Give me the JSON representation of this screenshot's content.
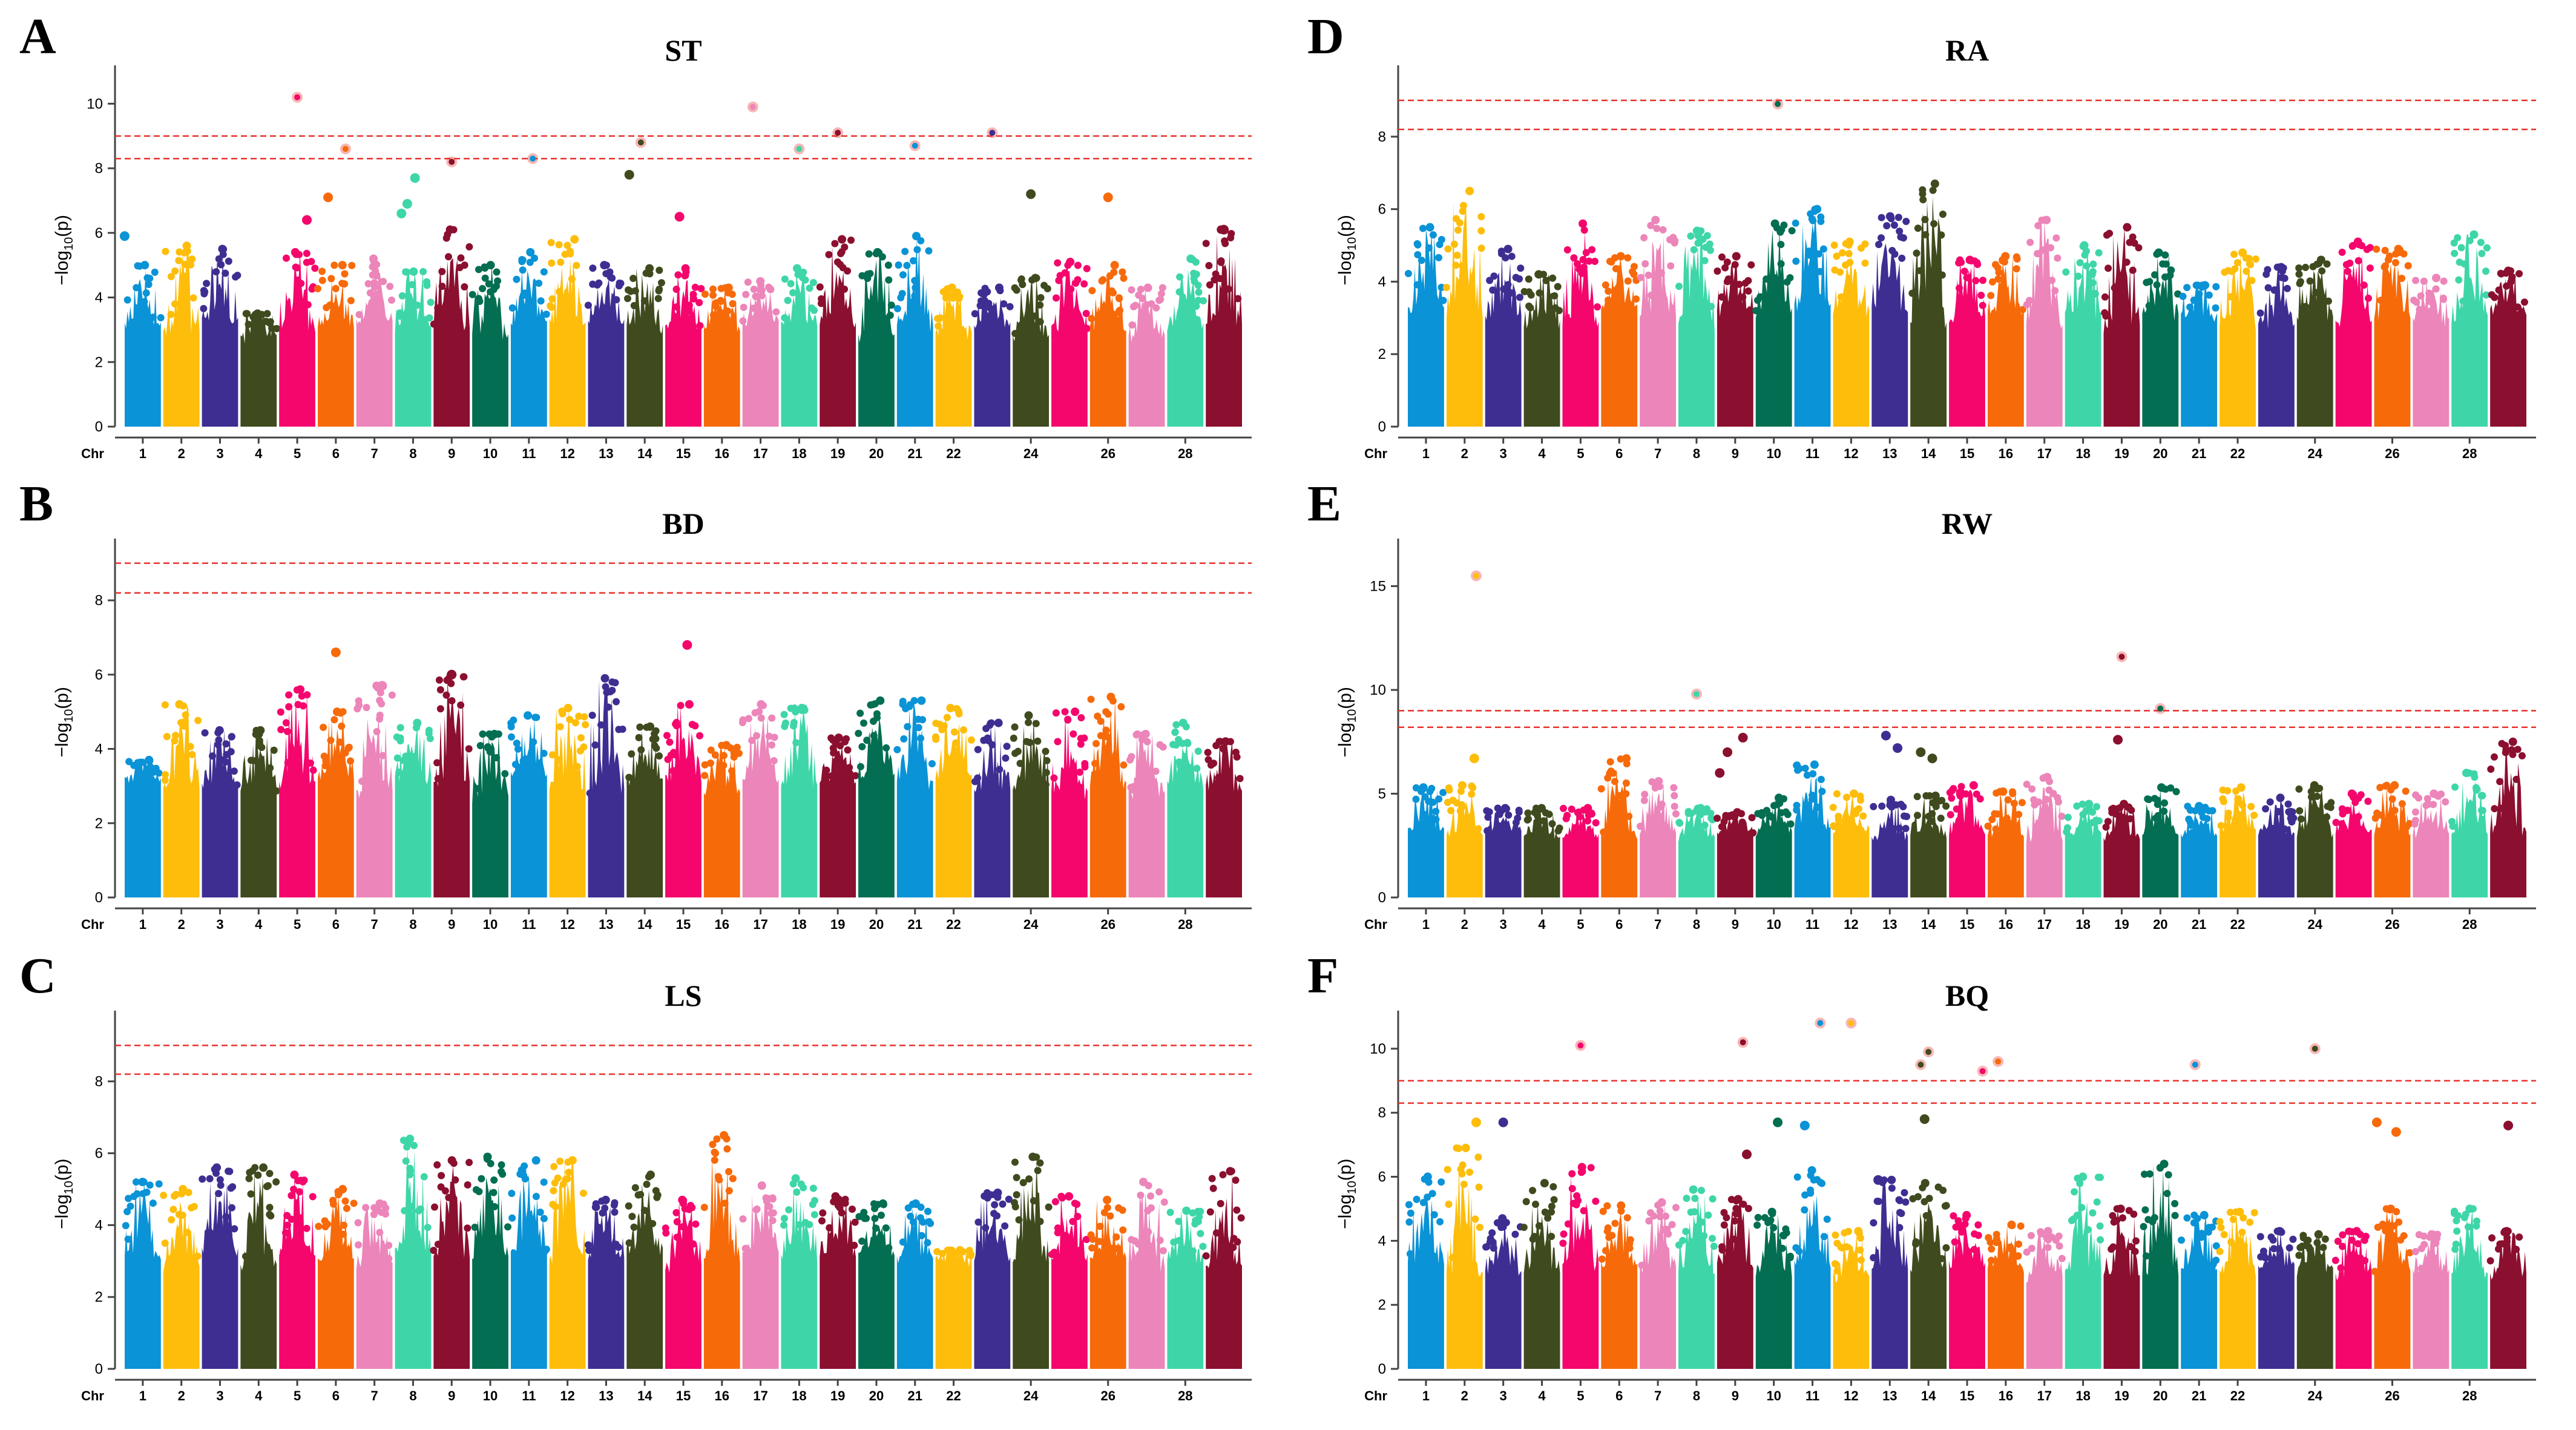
{
  "figure": {
    "ylabel_prefix": "−log",
    "ylabel_sub": "10",
    "ylabel_suffix": "(p)",
    "chr_label": "Chr"
  },
  "colors": {
    "chromosomes": [
      "#0a93d6",
      "#fdbd0a",
      "#3e2e92",
      "#3f4b1e",
      "#f4066d",
      "#f76a0a",
      "#ec85b9",
      "#3ed6a8",
      "#8b0f2f",
      "#036e51"
    ],
    "threshold": "#e8322c",
    "axis": "#444444"
  },
  "chart_data": [
    {
      "letter": "A",
      "title": "ST",
      "type": "scatter",
      "ylim": [
        0,
        11
      ],
      "yticks": [
        0,
        2,
        4,
        6,
        8,
        10
      ],
      "thresholds": [
        9.0,
        8.3
      ],
      "chromosomes": [
        "1",
        "2",
        "3",
        "4",
        "5",
        "6",
        "7",
        "8",
        "9",
        "10",
        "11",
        "12",
        "13",
        "14",
        "15",
        "16",
        "17",
        "18",
        "19",
        "20",
        "21",
        "22",
        "24",
        "26",
        "28"
      ],
      "chromosome_count": 29,
      "band_peaks": [
        5.0,
        5.6,
        5.5,
        3.5,
        5.4,
        5.0,
        5.2,
        4.8,
        6.1,
        5.0,
        5.4,
        5.8,
        5.0,
        4.9,
        4.9,
        4.3,
        4.5,
        4.9,
        5.8,
        5.4,
        5.9,
        4.3,
        4.3,
        4.6,
        5.1,
        5.0,
        4.3,
        5.2,
        6.1
      ],
      "points": [
        {
          "chr": 1,
          "pos": 0.03,
          "y": 5.9,
          "star": false
        },
        {
          "chr": 5,
          "pos": 0.5,
          "y": 10.2,
          "star": true
        },
        {
          "chr": 5,
          "pos": 0.75,
          "y": 6.4,
          "star": false
        },
        {
          "chr": 6,
          "pos": 0.3,
          "y": 7.1,
          "star": false
        },
        {
          "chr": 6,
          "pos": 0.75,
          "y": 8.6,
          "star": true
        },
        {
          "chr": 8,
          "pos": 0.2,
          "y": 6.6,
          "star": false
        },
        {
          "chr": 8,
          "pos": 0.35,
          "y": 6.9,
          "star": false
        },
        {
          "chr": 8,
          "pos": 0.55,
          "y": 7.7,
          "star": false
        },
        {
          "chr": 9,
          "pos": 0.5,
          "y": 8.2,
          "star": true
        },
        {
          "chr": 11,
          "pos": 0.6,
          "y": 8.3,
          "star": true
        },
        {
          "chr": 14,
          "pos": 0.1,
          "y": 7.8,
          "star": false
        },
        {
          "chr": 14,
          "pos": 0.4,
          "y": 8.8,
          "star": true
        },
        {
          "chr": 15,
          "pos": 0.4,
          "y": 6.5,
          "star": false
        },
        {
          "chr": 17,
          "pos": 0.3,
          "y": 9.9,
          "star": true
        },
        {
          "chr": 18,
          "pos": 0.5,
          "y": 8.6,
          "star": true
        },
        {
          "chr": 19,
          "pos": 0.5,
          "y": 9.1,
          "star": true
        },
        {
          "chr": 21,
          "pos": 0.5,
          "y": 8.7,
          "star": true
        },
        {
          "chr": 23,
          "pos": 0.5,
          "y": 9.1,
          "star": true
        },
        {
          "chr": 24,
          "pos": 0.5,
          "y": 7.2,
          "star": false
        },
        {
          "chr": 26,
          "pos": 0.5,
          "y": 7.1,
          "star": false
        },
        {
          "chr": 29,
          "pos": 0.5,
          "y": 6.1,
          "star": false
        }
      ]
    },
    {
      "letter": "B",
      "title": "BD",
      "type": "scatter",
      "ylim": [
        0,
        9.5
      ],
      "yticks": [
        0,
        2,
        4,
        6,
        8
      ],
      "thresholds": [
        9.0,
        8.2
      ],
      "chromosomes": [
        "1",
        "2",
        "3",
        "4",
        "5",
        "6",
        "7",
        "8",
        "9",
        "10",
        "11",
        "12",
        "13",
        "14",
        "15",
        "16",
        "17",
        "18",
        "19",
        "20",
        "21",
        "22",
        "24",
        "26",
        "28"
      ],
      "chromosome_count": 29,
      "band_peaks": [
        3.7,
        5.2,
        4.5,
        4.5,
        5.6,
        5.0,
        5.7,
        4.7,
        6.0,
        4.4,
        4.9,
        5.1,
        5.9,
        4.6,
        5.2,
        4.1,
        5.2,
        5.1,
        4.3,
        5.3,
        5.3,
        5.1,
        4.7,
        4.9,
        5.0,
        5.4,
        4.4,
        4.7,
        4.2
      ],
      "points": [
        {
          "chr": 6,
          "pos": 0.5,
          "y": 6.6,
          "star": false
        },
        {
          "chr": 7,
          "pos": 0.7,
          "y": 5.7,
          "star": false
        },
        {
          "chr": 9,
          "pos": 0.5,
          "y": 6.0,
          "star": false
        },
        {
          "chr": 15,
          "pos": 0.6,
          "y": 6.8,
          "star": false
        }
      ]
    },
    {
      "letter": "C",
      "title": "LS",
      "type": "scatter",
      "ylim": [
        0,
        9.8
      ],
      "yticks": [
        0,
        2,
        4,
        6,
        8
      ],
      "thresholds": [
        9.0,
        8.2
      ],
      "chromosomes": [
        "1",
        "2",
        "3",
        "4",
        "5",
        "6",
        "7",
        "8",
        "9",
        "10",
        "11",
        "12",
        "13",
        "14",
        "15",
        "16",
        "17",
        "18",
        "19",
        "20",
        "21",
        "22",
        "24",
        "26",
        "28"
      ],
      "chromosome_count": 29,
      "band_peaks": [
        5.2,
        5.0,
        5.6,
        5.6,
        5.4,
        5.0,
        4.6,
        6.4,
        5.8,
        5.9,
        5.8,
        5.8,
        4.7,
        5.4,
        4.7,
        6.5,
        5.1,
        5.3,
        4.8,
        4.6,
        4.6,
        3.3,
        4.9,
        5.9,
        4.8,
        4.7,
        5.2,
        4.4,
        5.5
      ],
      "points": []
    },
    {
      "letter": "D",
      "title": "RA",
      "type": "scatter",
      "ylim": [
        0,
        9.8
      ],
      "yticks": [
        0,
        2,
        4,
        6,
        8
      ],
      "thresholds": [
        9.0,
        8.2
      ],
      "chromosomes": [
        "1",
        "2",
        "3",
        "4",
        "5",
        "6",
        "7",
        "8",
        "9",
        "10",
        "11",
        "12",
        "13",
        "14",
        "15",
        "16",
        "17",
        "18",
        "19",
        "20",
        "21",
        "22",
        "24",
        "26",
        "28"
      ],
      "chromosome_count": 29,
      "band_peaks": [
        5.5,
        6.5,
        4.9,
        4.2,
        5.6,
        4.7,
        5.7,
        5.4,
        4.7,
        5.6,
        6.0,
        5.1,
        5.8,
        6.7,
        4.6,
        4.7,
        5.7,
        5.0,
        5.5,
        4.8,
        3.9,
        4.8,
        4.4,
        4.6,
        5.1,
        4.9,
        4.1,
        5.3,
        4.3
      ],
      "points": [
        {
          "chr": 10,
          "pos": 0.6,
          "y": 8.9,
          "star": true
        }
      ]
    },
    {
      "letter": "E",
      "title": "RW",
      "type": "scatter",
      "ylim": [
        0,
        17
      ],
      "yticks": [
        0,
        5,
        10,
        15
      ],
      "thresholds": [
        9.0,
        8.2
      ],
      "chromosomes": [
        "1",
        "2",
        "3",
        "4",
        "5",
        "6",
        "7",
        "8",
        "9",
        "10",
        "11",
        "12",
        "13",
        "14",
        "15",
        "16",
        "17",
        "18",
        "19",
        "20",
        "21",
        "22",
        "24",
        "26",
        "28"
      ],
      "chromosome_count": 29,
      "band_peaks": [
        5.3,
        5.4,
        4.3,
        4.3,
        4.3,
        6.7,
        5.6,
        4.3,
        4.1,
        4.8,
        6.4,
        5.0,
        4.7,
        4.9,
        5.4,
        5.1,
        5.8,
        4.5,
        4.5,
        5.3,
        4.4,
        5.3,
        4.8,
        5.4,
        5.0,
        5.4,
        5.0,
        6.0,
        7.5
      ],
      "points": [
        {
          "chr": 2,
          "pos": 0.8,
          "y": 15.5,
          "star": true
        },
        {
          "chr": 2,
          "pos": 0.75,
          "y": 6.7,
          "star": false
        },
        {
          "chr": 8,
          "pos": 0.5,
          "y": 9.8,
          "star": true
        },
        {
          "chr": 9,
          "pos": 0.1,
          "y": 6.0,
          "star": false
        },
        {
          "chr": 9,
          "pos": 0.3,
          "y": 7.0,
          "star": false
        },
        {
          "chr": 9,
          "pos": 0.7,
          "y": 7.7,
          "star": false
        },
        {
          "chr": 13,
          "pos": 0.4,
          "y": 7.8,
          "star": false
        },
        {
          "chr": 13,
          "pos": 0.7,
          "y": 7.2,
          "star": false
        },
        {
          "chr": 14,
          "pos": 0.3,
          "y": 7.0,
          "star": false
        },
        {
          "chr": 14,
          "pos": 0.6,
          "y": 6.7,
          "star": false
        },
        {
          "chr": 19,
          "pos": 0.5,
          "y": 11.6,
          "star": true
        },
        {
          "chr": 19,
          "pos": 0.4,
          "y": 7.6,
          "star": false
        },
        {
          "chr": 20,
          "pos": 0.5,
          "y": 9.1,
          "star": true
        }
      ]
    },
    {
      "letter": "F",
      "title": "BQ",
      "type": "scatter",
      "ylim": [
        0,
        11
      ],
      "yticks": [
        0,
        2,
        4,
        6,
        8,
        10
      ],
      "thresholds": [
        9.0,
        8.3
      ],
      "chromosomes": [
        "1",
        "2",
        "3",
        "4",
        "5",
        "6",
        "7",
        "8",
        "9",
        "10",
        "11",
        "12",
        "13",
        "14",
        "15",
        "16",
        "17",
        "18",
        "19",
        "20",
        "21",
        "22",
        "24",
        "26",
        "28"
      ],
      "chromosome_count": 29,
      "band_peaks": [
        6.0,
        6.9,
        4.7,
        5.8,
        6.3,
        5.1,
        5.2,
        5.6,
        5.3,
        4.9,
        6.2,
        4.3,
        5.9,
        5.8,
        4.8,
        4.5,
        4.3,
        6.0,
        5.0,
        6.4,
        4.8,
        4.9,
        4.3,
        4.2,
        4.3,
        5.0,
        4.2,
        5.0,
        4.3
      ],
      "points": [
        {
          "chr": 2,
          "pos": 0.8,
          "y": 7.7,
          "star": false
        },
        {
          "chr": 3,
          "pos": 0.5,
          "y": 7.7,
          "star": false
        },
        {
          "chr": 5,
          "pos": 0.5,
          "y": 10.1,
          "star": true
        },
        {
          "chr": 9,
          "pos": 0.7,
          "y": 10.2,
          "star": true
        },
        {
          "chr": 9,
          "pos": 0.8,
          "y": 6.7,
          "star": false
        },
        {
          "chr": 10,
          "pos": 0.6,
          "y": 7.7,
          "star": false
        },
        {
          "chr": 11,
          "pos": 0.3,
          "y": 7.6,
          "star": false
        },
        {
          "chr": 11,
          "pos": 0.7,
          "y": 10.8,
          "star": true
        },
        {
          "chr": 12,
          "pos": 0.5,
          "y": 10.8,
          "star": true
        },
        {
          "chr": 13,
          "pos": 0.2,
          "y": 5.9,
          "star": false
        },
        {
          "chr": 14,
          "pos": 0.3,
          "y": 9.5,
          "star": true
        },
        {
          "chr": 14,
          "pos": 0.5,
          "y": 9.9,
          "star": true
        },
        {
          "chr": 14,
          "pos": 0.4,
          "y": 7.8,
          "star": false
        },
        {
          "chr": 15,
          "pos": 0.9,
          "y": 9.3,
          "star": true
        },
        {
          "chr": 16,
          "pos": 0.3,
          "y": 9.6,
          "star": true
        },
        {
          "chr": 21,
          "pos": 0.4,
          "y": 9.5,
          "star": true
        },
        {
          "chr": 24,
          "pos": 0.5,
          "y": 10.0,
          "star": true
        },
        {
          "chr": 26,
          "pos": 0.1,
          "y": 7.7,
          "star": false
        },
        {
          "chr": 26,
          "pos": 0.6,
          "y": 7.4,
          "star": false
        },
        {
          "chr": 29,
          "pos": 0.5,
          "y": 7.6,
          "star": false
        }
      ]
    }
  ]
}
